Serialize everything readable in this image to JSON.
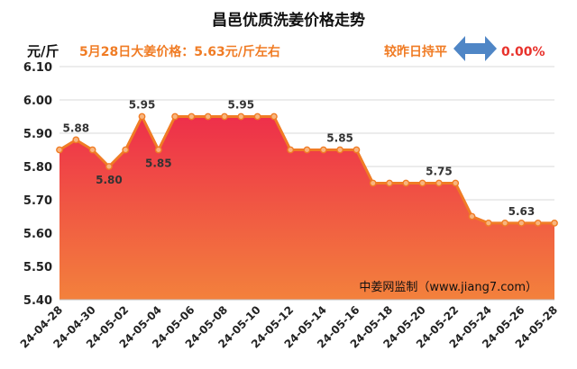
{
  "header": {
    "title": "昌邑优质洗姜价格走势",
    "unit": "元/斤",
    "price_note": "5月28日大姜价格：5.63元/斤左右",
    "compare_label": "较昨日持平",
    "change_icon": "double-arrow-icon",
    "change_pct": "0.00%"
  },
  "watermark": "中姜网监制（www.jiang7.com）",
  "colors": {
    "line": "#f07c25",
    "marker_fill": "#f8b57e",
    "fill_top": "#ee2f4a",
    "fill_bottom": "#f3813c",
    "accent_text": "#f07c25",
    "arrow": "#4f86c6",
    "change_text": "#e8322c"
  },
  "chart_data": {
    "type": "area",
    "title": "昌邑优质洗姜价格走势",
    "ylabel": "元/斤",
    "xlabel": "",
    "ylim": [
      5.4,
      6.1
    ],
    "yticks": [
      "5.40",
      "5.50",
      "5.60",
      "5.70",
      "5.80",
      "5.90",
      "6.00",
      "6.10"
    ],
    "x": [
      "24-04-28",
      "24-04-29",
      "24-04-30",
      "24-05-01",
      "24-05-02",
      "24-05-03",
      "24-05-04",
      "24-05-05",
      "24-05-06",
      "24-05-07",
      "24-05-08",
      "24-05-09",
      "24-05-10",
      "24-05-11",
      "24-05-12",
      "24-05-13",
      "24-05-14",
      "24-05-15",
      "24-05-16",
      "24-05-17",
      "24-05-18",
      "24-05-19",
      "24-05-20",
      "24-05-21",
      "24-05-22",
      "24-05-23",
      "24-05-24",
      "24-05-25",
      "24-05-26",
      "24-05-27",
      "24-05-28"
    ],
    "xticks": [
      "24-04-28",
      "24-04-30",
      "24-05-02",
      "24-05-04",
      "24-05-06",
      "24-05-08",
      "24-05-10",
      "24-05-12",
      "24-05-14",
      "24-05-16",
      "24-05-18",
      "24-05-20",
      "24-05-22",
      "24-05-24",
      "24-05-26",
      "24-05-28"
    ],
    "series": [
      {
        "values": [
          5.85,
          5.88,
          5.85,
          5.8,
          5.85,
          5.95,
          5.85,
          5.95,
          5.95,
          5.95,
          5.95,
          5.95,
          5.95,
          5.95,
          5.85,
          5.85,
          5.85,
          5.85,
          5.85,
          5.75,
          5.75,
          5.75,
          5.75,
          5.75,
          5.75,
          5.65,
          5.63,
          5.63,
          5.63,
          5.63,
          5.63
        ]
      }
    ],
    "data_labels": [
      {
        "x": "24-04-29",
        "text": "5.88"
      },
      {
        "x": "24-05-01",
        "text": "5.80"
      },
      {
        "x": "24-05-03",
        "text": "5.95"
      },
      {
        "x": "24-05-04",
        "text": "5.85"
      },
      {
        "x": "24-05-09",
        "text": "5.95"
      },
      {
        "x": "24-05-15",
        "text": "5.85"
      },
      {
        "x": "24-05-21",
        "text": "5.75"
      },
      {
        "x": "24-05-26",
        "text": "5.63"
      }
    ],
    "grid": {
      "horizontal": true,
      "vertical": false
    }
  }
}
